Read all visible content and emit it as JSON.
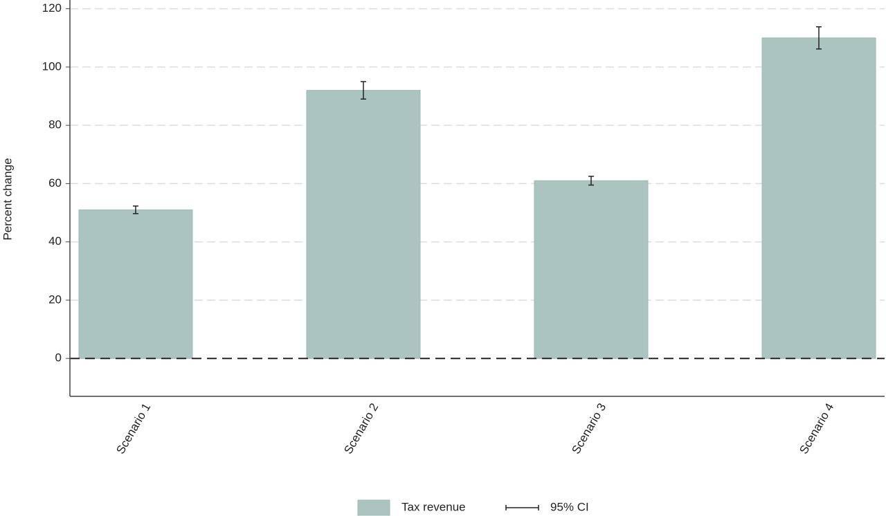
{
  "chart_data": {
    "type": "bar",
    "y_label": "Percent change",
    "categories": [
      "Scenario 1",
      "Scenario 2",
      "Scenario 3",
      "Scenario 4"
    ],
    "series": [
      {
        "name": "Tax revenue",
        "color": "#abc4c0",
        "values": [
          51,
          92,
          61,
          110
        ],
        "errors": [
          1.3,
          3,
          1.5,
          3.8
        ]
      }
    ],
    "error_name": "95% CI",
    "ylim": [
      -13,
      123
    ],
    "yticks": [
      0,
      20,
      40,
      60,
      80,
      100,
      120
    ],
    "grid": true
  }
}
